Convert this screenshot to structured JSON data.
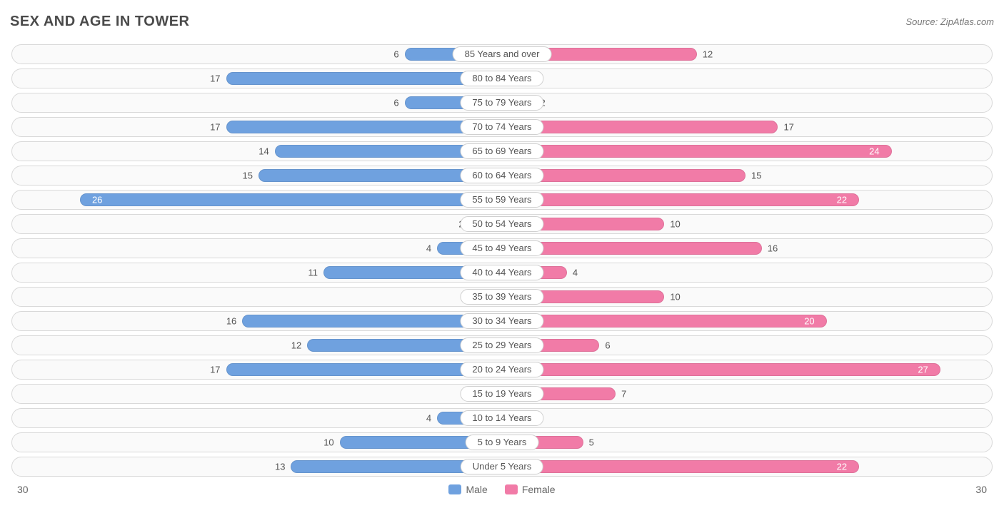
{
  "title": "SEX AND AGE IN TOWER",
  "source": "Source: ZipAtlas.com",
  "chart": {
    "type": "pyramid-bar",
    "max_value": 30,
    "axis_left_label": "30",
    "axis_right_label": "30",
    "male_color": "#6fa1df",
    "female_color": "#f17ba7",
    "background_color": "#ffffff",
    "row_border_color": "#d9d9d9",
    "text_color": "#555555",
    "value_inside_color": "#ffffff",
    "label_fontsize": 13,
    "inside_threshold": 18,
    "legend": {
      "male_label": "Male",
      "female_label": "Female"
    },
    "rows": [
      {
        "label": "85 Years and over",
        "male": 6,
        "female": 12
      },
      {
        "label": "80 to 84 Years",
        "male": 17,
        "female": 1
      },
      {
        "label": "75 to 79 Years",
        "male": 6,
        "female": 2
      },
      {
        "label": "70 to 74 Years",
        "male": 17,
        "female": 17
      },
      {
        "label": "65 to 69 Years",
        "male": 14,
        "female": 24
      },
      {
        "label": "60 to 64 Years",
        "male": 15,
        "female": 15
      },
      {
        "label": "55 to 59 Years",
        "male": 26,
        "female": 22
      },
      {
        "label": "50 to 54 Years",
        "male": 2,
        "female": 10
      },
      {
        "label": "45 to 49 Years",
        "male": 4,
        "female": 16
      },
      {
        "label": "40 to 44 Years",
        "male": 11,
        "female": 4
      },
      {
        "label": "35 to 39 Years",
        "male": 0,
        "female": 10
      },
      {
        "label": "30 to 34 Years",
        "male": 16,
        "female": 20
      },
      {
        "label": "25 to 29 Years",
        "male": 12,
        "female": 6
      },
      {
        "label": "20 to 24 Years",
        "male": 17,
        "female": 27
      },
      {
        "label": "15 to 19 Years",
        "male": 0,
        "female": 7
      },
      {
        "label": "10 to 14 Years",
        "male": 4,
        "female": 0
      },
      {
        "label": "5 to 9 Years",
        "male": 10,
        "female": 5
      },
      {
        "label": "Under 5 Years",
        "male": 13,
        "female": 22
      }
    ]
  }
}
